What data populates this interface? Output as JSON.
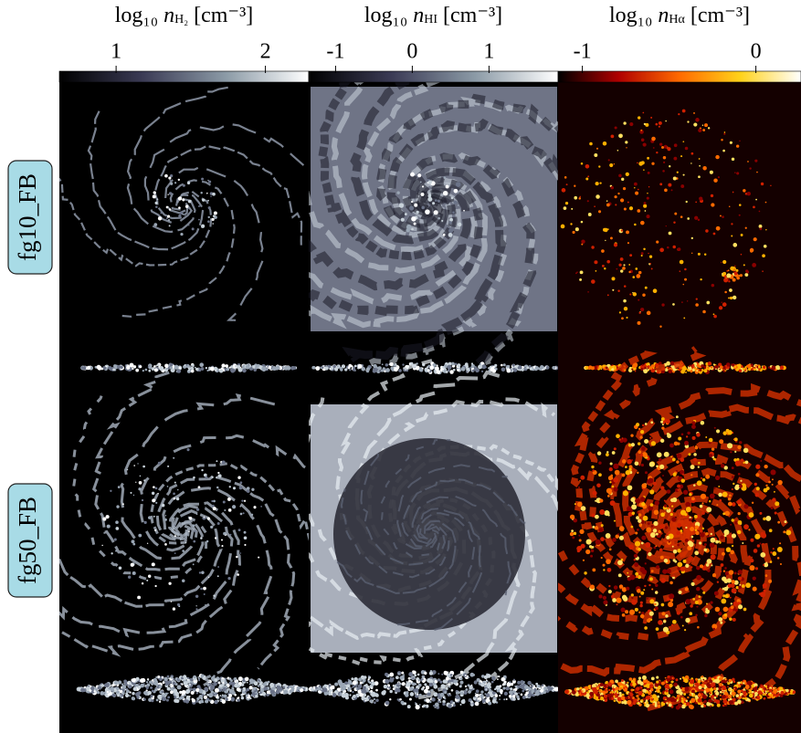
{
  "colorbars": [
    {
      "label": {
        "prefix": "log₁₀ ",
        "var": "n",
        "sub": "H₂",
        "unit": " [cm⁻³]"
      },
      "lim": [
        0.62,
        2.29
      ],
      "ticks": [
        1,
        2
      ],
      "colors": [
        "#000000",
        "#3b3b55",
        "#8b9aa6",
        "#ffffff"
      ]
    },
    {
      "label": {
        "prefix": "log₁₀ ",
        "var": "n",
        "sub": "HI",
        "unit": " [cm⁻³]"
      },
      "lim": [
        -1.35,
        1.9
      ],
      "ticks": [
        -1,
        0,
        1
      ],
      "colors": [
        "#000000",
        "#3b3b55",
        "#8b9aa6",
        "#ffffff"
      ]
    },
    {
      "label": {
        "prefix": "log₁₀ ",
        "var": "n",
        "sub": "Hα",
        "unit": " [cm⁻³]"
      },
      "lim": [
        -1.14,
        0.26
      ],
      "ticks": [
        -1,
        0
      ],
      "colors": [
        "#000000",
        "#b00000",
        "#ff6a00",
        "#ffd21a",
        "#ffffff"
      ]
    }
  ],
  "rows": [
    {
      "label": "fg10_FB"
    },
    {
      "label": "fg50_FB"
    }
  ]
}
